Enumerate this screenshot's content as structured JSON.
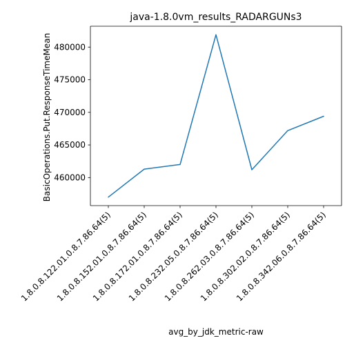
{
  "chart_data": {
    "type": "line",
    "title": "java-1.8.0vm_results_RADARGUNs3",
    "xlabel": "avg_by_jdk_metric-raw",
    "ylabel": "BasicOperations.Put.ResponseTimeMean",
    "categories": [
      "1.8.0.8.122.01.0.8.7.86.64(5)",
      "1.8.0.8.152.01.0.8.7.86.64(5)",
      "1.8.0.8.172.01.0.8.7.86.64(5)",
      "1.8.0.8.232.05.0.8.7.86.64(5)",
      "1.8.0.8.262.03.0.8.7.86.64(5)",
      "1.8.0.8.302.02.0.8.7.86.64(5)",
      "1.8.0.8.342.06.0.8.7.86.64(5)"
    ],
    "series": [
      {
        "values": [
          457000,
          461300,
          462000,
          481900,
          461200,
          467200,
          469400
        ]
      }
    ],
    "yticks": [
      460000,
      465000,
      470000,
      475000,
      480000
    ],
    "ylim": [
      455700,
      483200
    ],
    "grid": false,
    "line_color": "#1f77b4"
  }
}
